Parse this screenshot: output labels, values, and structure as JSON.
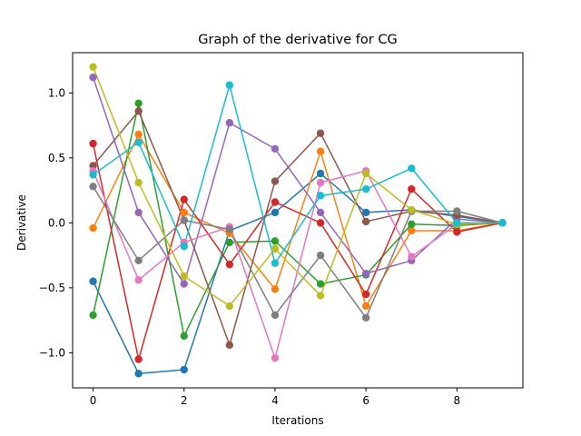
{
  "chart_data": {
    "type": "line",
    "title": "Graph of the derivative for CG",
    "xlabel": "Iterations",
    "ylabel": "Derivative",
    "xlim": [
      -0.45,
      9.45
    ],
    "ylim": [
      -1.27,
      1.31
    ],
    "x_ticks": [
      0,
      2,
      4,
      6,
      8
    ],
    "x_tick_labels": [
      "0",
      "2",
      "4",
      "6",
      "8"
    ],
    "y_ticks": [
      -1.0,
      -0.5,
      0.0,
      0.5,
      1.0
    ],
    "y_tick_labels": [
      "−1.0",
      "−0.5",
      "0.0",
      "0.5",
      "1.0"
    ],
    "grid": false,
    "x": [
      0,
      1,
      2,
      3,
      4,
      5,
      6,
      7,
      8,
      9
    ],
    "series": [
      {
        "color": "#1f77b4",
        "values": [
          -0.45,
          -1.16,
          -1.13,
          -0.06,
          0.08,
          0.38,
          0.08,
          0.1,
          0.05,
          0.0
        ]
      },
      {
        "color": "#ff7f0e",
        "values": [
          -0.04,
          0.68,
          0.08,
          -0.08,
          -0.51,
          0.55,
          -0.64,
          -0.06,
          -0.06,
          0.0
        ]
      },
      {
        "color": "#2ca02c",
        "values": [
          -0.71,
          0.92,
          -0.87,
          -0.15,
          -0.14,
          -0.47,
          -0.4,
          -0.01,
          -0.02,
          0.0
        ]
      },
      {
        "color": "#d62728",
        "values": [
          0.61,
          -1.05,
          0.18,
          -0.32,
          0.16,
          0.0,
          -0.55,
          0.26,
          -0.07,
          0.0
        ]
      },
      {
        "color": "#9467bd",
        "values": [
          1.12,
          0.08,
          -0.47,
          0.77,
          0.57,
          0.08,
          -0.39,
          -0.29,
          0.03,
          0.0
        ]
      },
      {
        "color": "#8c564b",
        "values": [
          0.44,
          0.86,
          0.02,
          -0.94,
          0.32,
          0.69,
          0.01,
          0.09,
          0.06,
          0.0
        ]
      },
      {
        "color": "#e377c2",
        "values": [
          0.4,
          -0.44,
          -0.15,
          -0.03,
          -1.04,
          0.31,
          0.4,
          -0.26,
          -0.01,
          0.0
        ]
      },
      {
        "color": "#7f7f7f",
        "values": [
          0.28,
          -0.29,
          0.02,
          -0.05,
          -0.71,
          -0.25,
          -0.73,
          0.09,
          0.09,
          0.0
        ]
      },
      {
        "color": "#bcbd22",
        "values": [
          1.2,
          0.31,
          -0.41,
          -0.64,
          -0.2,
          -0.56,
          0.38,
          0.1,
          -0.01,
          0.0
        ]
      },
      {
        "color": "#17becf",
        "values": [
          0.37,
          0.62,
          -0.18,
          1.06,
          -0.31,
          0.21,
          0.26,
          0.42,
          0.0,
          0.0
        ]
      }
    ]
  }
}
